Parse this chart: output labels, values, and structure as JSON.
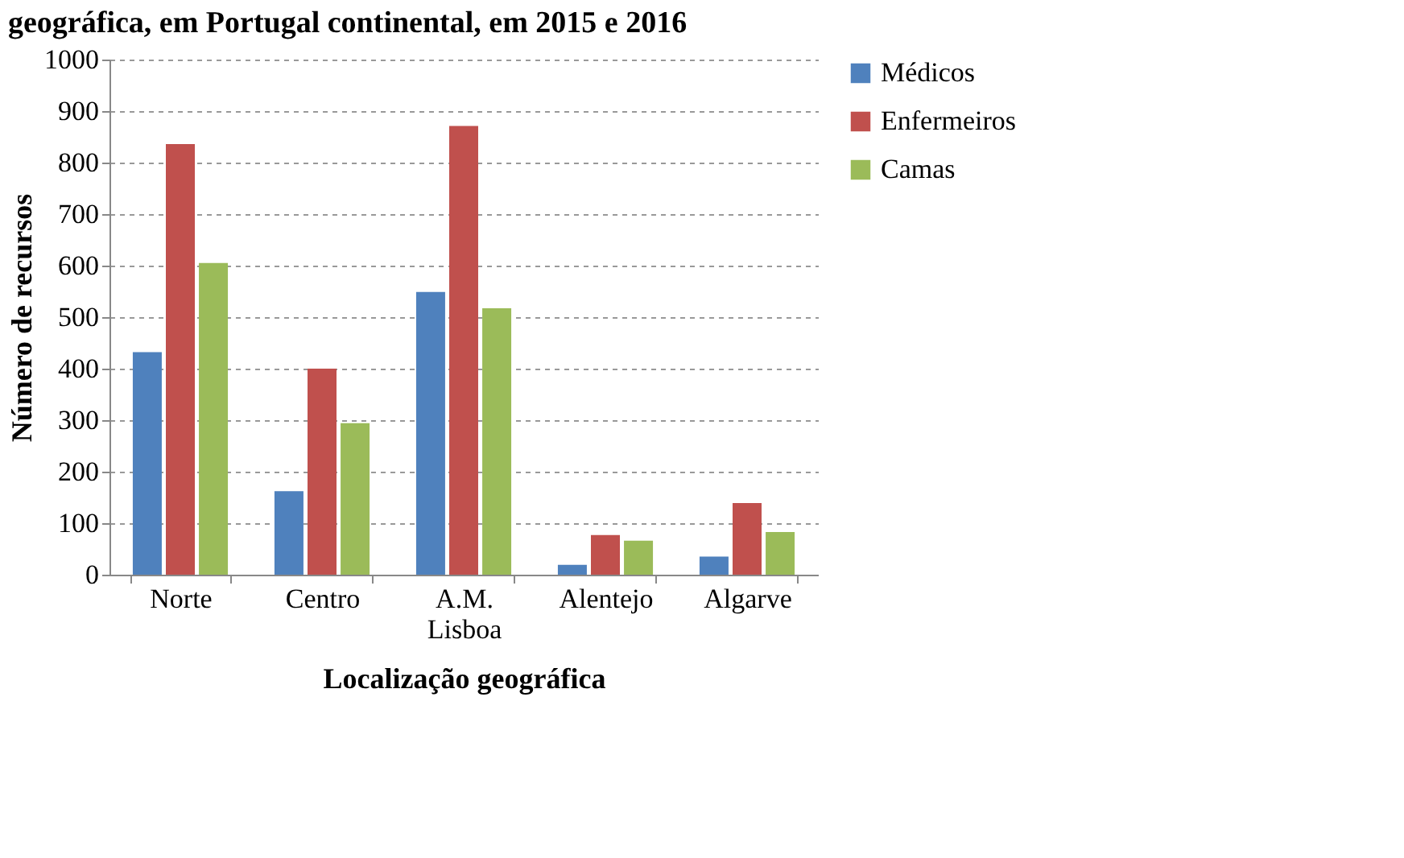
{
  "chart_data": {
    "type": "bar",
    "title": "geográfica, em Portugal continental, em 2015 e 2016",
    "xlabel": "Localização geográfica",
    "ylabel": "Número de recursos",
    "categories": [
      "Norte",
      "Centro",
      "A.M. Lisboa",
      "Alentejo",
      "Algarve"
    ],
    "series": [
      {
        "name": "Médicos",
        "color": "#4f81bd",
        "values": [
          432,
          162,
          549,
          19,
          35
        ]
      },
      {
        "name": "Enfermeiros",
        "color": "#c0504d",
        "values": [
          836,
          400,
          871,
          77,
          139
        ]
      },
      {
        "name": "Camas",
        "color": "#9bbb59",
        "values": [
          605,
          294,
          517,
          66,
          83
        ]
      }
    ],
    "ylim": [
      0,
      1000
    ],
    "yticks": [
      0,
      100,
      200,
      300,
      400,
      500,
      600,
      700,
      800,
      900,
      1000
    ],
    "grid": "y",
    "legend": "right"
  }
}
